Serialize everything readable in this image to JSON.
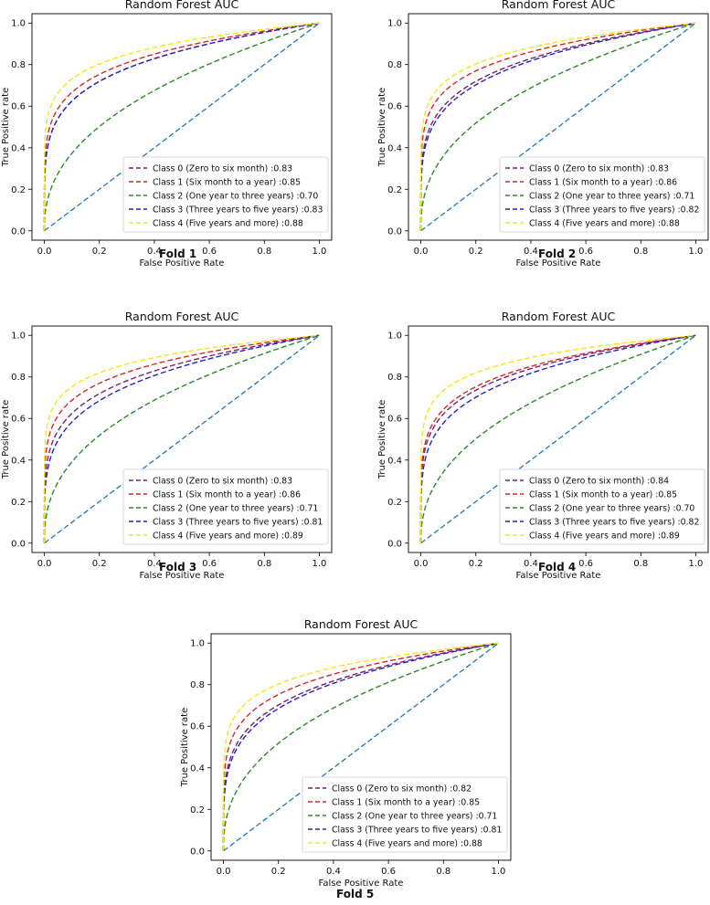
{
  "figure": {
    "title": "Random Forest AUC",
    "xlabel": "False Positive Rate",
    "ylabel": "True Positive rate",
    "ticks": [
      "0.0",
      "0.2",
      "0.4",
      "0.6",
      "0.8",
      "1.0"
    ]
  },
  "chart_data": [
    {
      "type": "line",
      "fold_label": "Fold 1",
      "title": "Random Forest AUC",
      "xlabel": "False Positive Rate",
      "ylabel": "True Positive rate",
      "xlim": [
        0,
        1
      ],
      "ylim": [
        0,
        1
      ],
      "series": [
        {
          "name": "Class 0 (Zero to six month)",
          "auc": "0.83",
          "color": "#7b1f6f"
        },
        {
          "name": "Class 1 (Six month to a year)",
          "auc": "0.85",
          "color": "#d62728"
        },
        {
          "name": "Class 2 (One year to three years)",
          "auc": "0.70",
          "color": "#2a8a2a"
        },
        {
          "name": "Class 3 (Three years to five years)",
          "auc": "0.83",
          "color": "#2323c8"
        },
        {
          "name": "Class 4 (Five years and more)",
          "auc": "0.88",
          "color": "#f5e61a"
        }
      ]
    },
    {
      "type": "line",
      "fold_label": "Fold 2",
      "title": "Random Forest AUC",
      "xlabel": "False Positive Rate",
      "ylabel": "True Positive rate",
      "xlim": [
        0,
        1
      ],
      "ylim": [
        0,
        1
      ],
      "series": [
        {
          "name": "Class 0 (Zero to six month)",
          "auc": "0.83",
          "color": "#7b1f6f"
        },
        {
          "name": "Class 1 (Six month to a year)",
          "auc": "0.86",
          "color": "#d62728"
        },
        {
          "name": "Class 2 (One year to three years)",
          "auc": "0.71",
          "color": "#2a8a2a"
        },
        {
          "name": "Class 3 (Three years to five years)",
          "auc": "0.82",
          "color": "#2323c8"
        },
        {
          "name": "Class 4 (Five years and more)",
          "auc": "0.88",
          "color": "#f5e61a"
        }
      ]
    },
    {
      "type": "line",
      "fold_label": "Fold 3",
      "title": "Random Forest AUC",
      "xlabel": "False Positive Rate",
      "ylabel": "True Positive rate",
      "xlim": [
        0,
        1
      ],
      "ylim": [
        0,
        1
      ],
      "series": [
        {
          "name": "Class 0 (Zero to six month)",
          "auc": "0.83",
          "color": "#7b1f6f"
        },
        {
          "name": "Class 1 (Six month to a year)",
          "auc": "0.86",
          "color": "#d62728"
        },
        {
          "name": "Class 2 (One year to three years)",
          "auc": "0.71",
          "color": "#2a8a2a"
        },
        {
          "name": "Class 3 (Three years to five years)",
          "auc": "0.81",
          "color": "#2323c8"
        },
        {
          "name": "Class 4 (Five years and more)",
          "auc": "0.89",
          "color": "#f5e61a"
        }
      ]
    },
    {
      "type": "line",
      "fold_label": "Fold 4",
      "title": "Random Forest AUC",
      "xlabel": "False Positive Rate",
      "ylabel": "True Positive rate",
      "xlim": [
        0,
        1
      ],
      "ylim": [
        0,
        1
      ],
      "series": [
        {
          "name": "Class 0 (Zero to six month)",
          "auc": "0.84",
          "color": "#7b1f6f"
        },
        {
          "name": "Class 1 (Six month to a year)",
          "auc": "0.85",
          "color": "#d62728"
        },
        {
          "name": "Class 2 (One year to three years)",
          "auc": "0.70",
          "color": "#2a8a2a"
        },
        {
          "name": "Class 3 (Three years to five years)",
          "auc": "0.82",
          "color": "#2323c8"
        },
        {
          "name": "Class 4 (Five years and more)",
          "auc": "0.89",
          "color": "#f5e61a"
        }
      ]
    },
    {
      "type": "line",
      "fold_label": "Fold 5",
      "title": "Random Forest AUC",
      "xlabel": "False Positive Rate",
      "ylabel": "True Positive rate",
      "xlim": [
        0,
        1
      ],
      "ylim": [
        0,
        1
      ],
      "series": [
        {
          "name": "Class 0 (Zero to six month)",
          "auc": "0.82",
          "color": "#7b1f6f"
        },
        {
          "name": "Class 1 (Six month to a year)",
          "auc": "0.85",
          "color": "#d62728"
        },
        {
          "name": "Class 2 (One year to three years)",
          "auc": "0.71",
          "color": "#2a8a2a"
        },
        {
          "name": "Class 3 (Three years to five years)",
          "auc": "0.81",
          "color": "#2323c8"
        },
        {
          "name": "Class 4 (Five years and more)",
          "auc": "0.88",
          "color": "#f5e61a"
        }
      ]
    }
  ],
  "diagonal_color": "#1f77b4"
}
